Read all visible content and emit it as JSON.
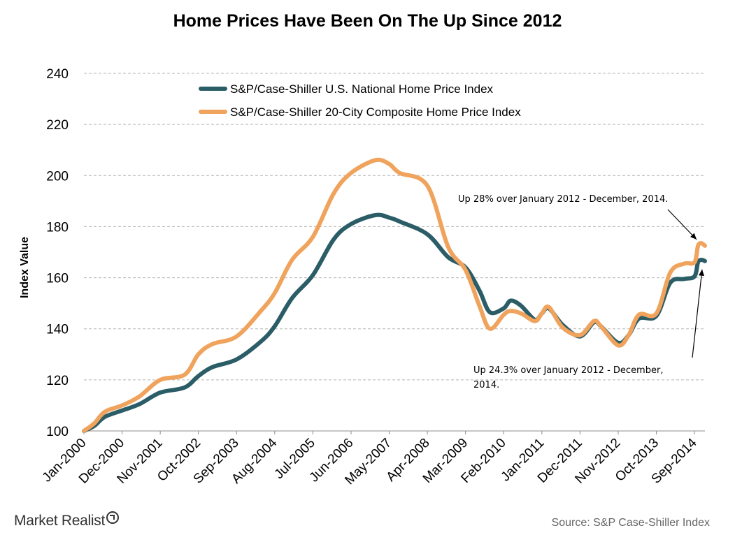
{
  "chart_data": {
    "type": "line",
    "title": "Home Prices Have Been On The Up Since 2012",
    "ylabel": "Index Value",
    "xlabel": "",
    "ylim": [
      100,
      240
    ],
    "yticks": [
      100,
      120,
      140,
      160,
      180,
      200,
      220,
      240
    ],
    "x_start": "Jan-2000",
    "x_end": "Dec-2014",
    "x_tick_labels": [
      "Jan-2000",
      "Dec-2000",
      "Nov-2001",
      "Oct-2002",
      "Sep-2003",
      "Aug-2004",
      "Jul-2005",
      "Jun-2006",
      "May-2007",
      "Apr-2008",
      "Mar-2009",
      "Feb-2010",
      "Jan-2011",
      "Dec-2011",
      "Nov-2012",
      "Oct-2013",
      "Sep-2014"
    ],
    "grid": "horizontal-dashed",
    "legend_position": "top-left",
    "series": [
      {
        "name": "S&P/Case-Shiller U.S. National Home Price Index",
        "color": "#2b5d67",
        "points": [
          [
            "Jan-2000",
            100
          ],
          [
            "Apr-2000",
            102
          ],
          [
            "Jul-2000",
            105.5
          ],
          [
            "Dec-2000",
            108
          ],
          [
            "May-2001",
            110.5
          ],
          [
            "Nov-2001",
            115
          ],
          [
            "Jun-2002",
            117
          ],
          [
            "Oct-2002",
            121.5
          ],
          [
            "Feb-2003",
            125
          ],
          [
            "Sep-2003",
            128
          ],
          [
            "Apr-2004",
            135
          ],
          [
            "Aug-2004",
            141
          ],
          [
            "Jan-2005",
            152
          ],
          [
            "Jul-2005",
            161
          ],
          [
            "Jan-2006",
            175
          ],
          [
            "Jun-2006",
            181
          ],
          [
            "Jan-2007",
            184.5
          ],
          [
            "May-2007",
            183.5
          ],
          [
            "Aug-2007",
            182
          ],
          [
            "Apr-2008",
            177
          ],
          [
            "Oct-2008",
            168
          ],
          [
            "Mar-2009",
            164
          ],
          [
            "Jul-2009",
            155
          ],
          [
            "Oct-2009",
            146.5
          ],
          [
            "Feb-2010",
            148
          ],
          [
            "Apr-2010",
            151
          ],
          [
            "Jul-2010",
            149
          ],
          [
            "Nov-2010",
            143.5
          ],
          [
            "Jan-2011",
            146
          ],
          [
            "Mar-2011",
            148
          ],
          [
            "Jul-2011",
            141.5
          ],
          [
            "Dec-2011",
            137
          ],
          [
            "Apr-2012",
            142.5
          ],
          [
            "Jun-2012",
            141
          ],
          [
            "Nov-2012",
            134.5
          ],
          [
            "Feb-2013",
            137.5
          ],
          [
            "May-2013",
            144
          ],
          [
            "Oct-2013",
            145
          ],
          [
            "Feb-2014",
            158
          ],
          [
            "Jun-2014",
            159.5
          ],
          [
            "Sep-2014",
            160.5
          ],
          [
            "Oct-2014",
            166
          ],
          [
            "Nov-2014",
            167
          ],
          [
            "Dec-2014",
            166.5
          ]
        ]
      },
      {
        "name": "S&P/Case-Shiller 20-City Composite Home Price Index",
        "color": "#f0a35c",
        "points": [
          [
            "Jan-2000",
            100
          ],
          [
            "Apr-2000",
            103
          ],
          [
            "Jul-2000",
            107.5
          ],
          [
            "Dec-2000",
            110
          ],
          [
            "May-2001",
            113.5
          ],
          [
            "Nov-2001",
            120
          ],
          [
            "Jun-2002",
            122
          ],
          [
            "Oct-2002",
            130
          ],
          [
            "Feb-2003",
            134
          ],
          [
            "Sep-2003",
            137
          ],
          [
            "Apr-2004",
            147
          ],
          [
            "Aug-2004",
            154
          ],
          [
            "Jan-2005",
            167
          ],
          [
            "Jul-2005",
            176
          ],
          [
            "Jan-2006",
            193
          ],
          [
            "Jun-2006",
            201
          ],
          [
            "Jan-2007",
            206
          ],
          [
            "May-2007",
            204.5
          ],
          [
            "Aug-2007",
            201
          ],
          [
            "Apr-2008",
            196
          ],
          [
            "Oct-2008",
            172
          ],
          [
            "Mar-2009",
            163
          ],
          [
            "Jul-2009",
            149
          ],
          [
            "Oct-2009",
            140
          ],
          [
            "Feb-2010",
            145.5
          ],
          [
            "Apr-2010",
            147
          ],
          [
            "Jul-2010",
            146
          ],
          [
            "Nov-2010",
            143
          ],
          [
            "Jan-2011",
            146
          ],
          [
            "Mar-2011",
            148.5
          ],
          [
            "Jul-2011",
            140.5
          ],
          [
            "Dec-2011",
            137.5
          ],
          [
            "Apr-2012",
            143
          ],
          [
            "Jun-2012",
            141
          ],
          [
            "Nov-2012",
            133.5
          ],
          [
            "Feb-2013",
            137.5
          ],
          [
            "May-2013",
            145.5
          ],
          [
            "Oct-2013",
            146
          ],
          [
            "Feb-2014",
            162
          ],
          [
            "Jun-2014",
            165.5
          ],
          [
            "Sep-2014",
            166
          ],
          [
            "Oct-2014",
            172.5
          ],
          [
            "Nov-2014",
            173.5
          ],
          [
            "Dec-2014",
            172.5
          ]
        ]
      }
    ],
    "annotations": [
      {
        "text": "Up 28% over January 2012 - December, 2014.",
        "series": 1
      },
      {
        "text": "Up 24.3% over January 2012 - December, 2014.",
        "series": 0
      }
    ]
  },
  "footer": {
    "logo_text": "Market Realist",
    "source": "Source: S&P Case-Shiller Index"
  }
}
